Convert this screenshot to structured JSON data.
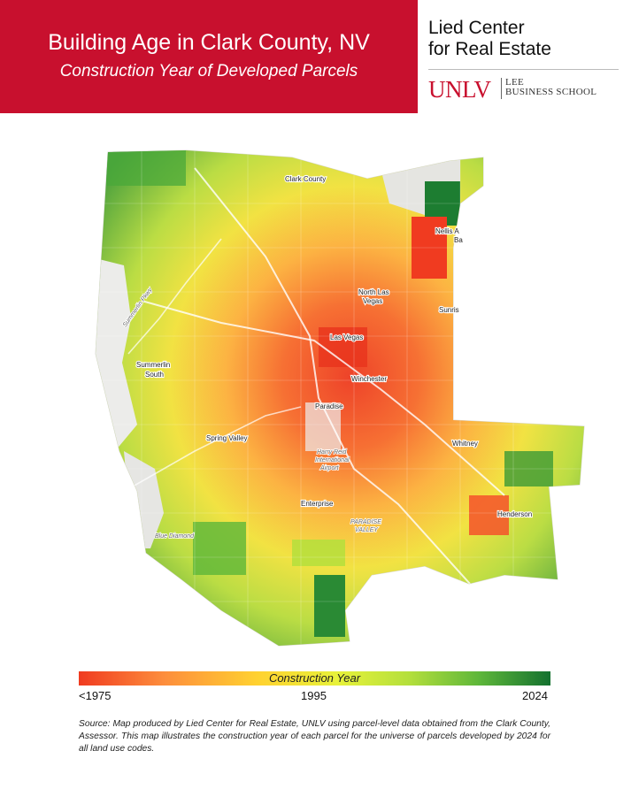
{
  "header": {
    "title": "Building Age in Clark County, NV",
    "subtitle": "Construction Year of Developed Parcels",
    "band_color": "#c8102e"
  },
  "branding": {
    "org_line1": "Lied Center",
    "org_line2": "for Real Estate",
    "unlv": "UNLV",
    "lee": "LEE",
    "business_school": "BUSINESS SCHOOL"
  },
  "map": {
    "places": {
      "clark_county": "Clark County",
      "north_las_vegas_1": "North Las",
      "north_las_vegas_2": "Vegas",
      "nellis_1": "Nellis A",
      "nellis_2": "Ba",
      "sunrise": "Sunris",
      "las_vegas": "Las Vegas",
      "summerlin_1": "Summerlin",
      "summerlin_2": "South",
      "winchester": "Winchester",
      "paradise": "Paradise",
      "spring_valley": "Spring Valley",
      "whitney": "Whitney",
      "airport_1": "Harry Reid",
      "airport_2": "International",
      "airport_3": "Airport",
      "enterprise": "Enterprise",
      "paradise_valley_1": "PARADISE",
      "paradise_valley_2": "VALLEY",
      "henderson": "Henderson",
      "blue_diamond": "Blue Diamond",
      "summerlin_pkwy": "Summerlin Pkwy"
    },
    "colors": {
      "oldest": "#f03b20",
      "older": "#fd8d3c",
      "mid": "#ffd230",
      "newer": "#b4df3c",
      "newest": "#14712f",
      "background": "#e9e9e6"
    }
  },
  "legend": {
    "title": "Construction Year",
    "min_label": "<1975",
    "mid_label": "1995",
    "max_label": "2024"
  },
  "source_text": "Source: Map produced by Lied Center for Real Estate, UNLV using parcel-level data obtained from the Clark County, Assessor. This map illustrates the construction year of each parcel for the universe of parcels developed by 2024 for all land use codes."
}
